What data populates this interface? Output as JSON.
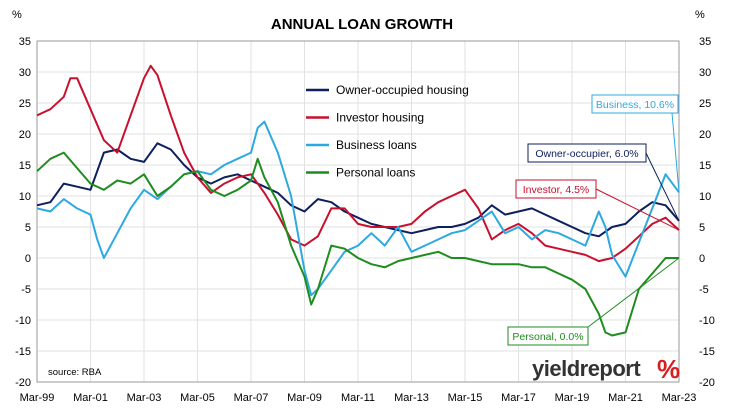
{
  "chart_data": {
    "type": "line",
    "title": "ANNUAL LOAN GROWTH",
    "y_unit_left": "%",
    "y_unit_right": "%",
    "ylim": [
      -20,
      35
    ],
    "yticks": [
      35,
      30,
      25,
      20,
      15,
      10,
      5,
      0,
      -5,
      -10,
      -15,
      -20
    ],
    "xlim": [
      "1999-03",
      "2023-03"
    ],
    "xticks": [
      "Mar-99",
      "Mar-01",
      "Mar-03",
      "Mar-05",
      "Mar-07",
      "Mar-09",
      "Mar-11",
      "Mar-13",
      "Mar-15",
      "Mar-17",
      "Mar-19",
      "Mar-21",
      "Mar-23"
    ],
    "grid": true,
    "legend_position": "top-center",
    "source": "source: RBA",
    "brand": "yieldreport",
    "brand_symbol": "%",
    "series": [
      {
        "name": "Owner-occupied housing",
        "color": "#0d1f5c",
        "points": [
          [
            "1999-03",
            8.5
          ],
          [
            "1999-09",
            9.0
          ],
          [
            "2000-03",
            12.0
          ],
          [
            "2000-09",
            11.5
          ],
          [
            "2001-03",
            11.0
          ],
          [
            "2001-06",
            14.0
          ],
          [
            "2001-09",
            17.0
          ],
          [
            "2002-03",
            17.5
          ],
          [
            "2002-09",
            16.0
          ],
          [
            "2003-03",
            15.5
          ],
          [
            "2003-09",
            18.5
          ],
          [
            "2004-03",
            17.5
          ],
          [
            "2004-09",
            15.0
          ],
          [
            "2005-03",
            13.0
          ],
          [
            "2005-09",
            12.0
          ],
          [
            "2006-03",
            13.0
          ],
          [
            "2006-09",
            13.5
          ],
          [
            "2007-03",
            12.5
          ],
          [
            "2007-09",
            11.5
          ],
          [
            "2008-03",
            10.5
          ],
          [
            "2008-09",
            8.5
          ],
          [
            "2009-03",
            7.5
          ],
          [
            "2009-09",
            9.5
          ],
          [
            "2010-03",
            9.0
          ],
          [
            "2010-09",
            7.5
          ],
          [
            "2011-03",
            6.5
          ],
          [
            "2011-09",
            5.5
          ],
          [
            "2012-03",
            5.0
          ],
          [
            "2012-09",
            4.5
          ],
          [
            "2013-03",
            4.0
          ],
          [
            "2013-09",
            4.5
          ],
          [
            "2014-03",
            5.0
          ],
          [
            "2014-09",
            5.0
          ],
          [
            "2015-03",
            5.5
          ],
          [
            "2015-09",
            6.5
          ],
          [
            "2016-03",
            8.5
          ],
          [
            "2016-09",
            7.0
          ],
          [
            "2017-03",
            7.5
          ],
          [
            "2017-09",
            8.0
          ],
          [
            "2018-03",
            7.0
          ],
          [
            "2018-09",
            6.0
          ],
          [
            "2019-03",
            5.0
          ],
          [
            "2019-09",
            4.0
          ],
          [
            "2020-03",
            3.5
          ],
          [
            "2020-09",
            5.0
          ],
          [
            "2021-03",
            5.5
          ],
          [
            "2021-09",
            7.5
          ],
          [
            "2022-03",
            9.0
          ],
          [
            "2022-09",
            8.5
          ],
          [
            "2023-03",
            6.0
          ]
        ]
      },
      {
        "name": "Investor housing",
        "color": "#c8102e",
        "points": [
          [
            "1999-03",
            23.0
          ],
          [
            "1999-09",
            24.0
          ],
          [
            "2000-03",
            26.0
          ],
          [
            "2000-06",
            29.0
          ],
          [
            "2000-09",
            29.0
          ],
          [
            "2001-03",
            24.0
          ],
          [
            "2001-09",
            19.0
          ],
          [
            "2002-03",
            17.0
          ],
          [
            "2002-09",
            23.0
          ],
          [
            "2003-03",
            29.0
          ],
          [
            "2003-06",
            31.0
          ],
          [
            "2003-09",
            29.5
          ],
          [
            "2004-03",
            23.0
          ],
          [
            "2004-09",
            17.0
          ],
          [
            "2005-03",
            13.0
          ],
          [
            "2005-09",
            10.5
          ],
          [
            "2006-03",
            12.0
          ],
          [
            "2006-09",
            13.0
          ],
          [
            "2007-03",
            13.5
          ],
          [
            "2007-09",
            10.5
          ],
          [
            "2008-03",
            7.0
          ],
          [
            "2008-09",
            3.0
          ],
          [
            "2009-03",
            2.0
          ],
          [
            "2009-09",
            3.5
          ],
          [
            "2010-03",
            8.0
          ],
          [
            "2010-09",
            8.0
          ],
          [
            "2011-03",
            5.5
          ],
          [
            "2011-09",
            5.0
          ],
          [
            "2012-03",
            5.0
          ],
          [
            "2012-09",
            5.0
          ],
          [
            "2013-03",
            5.5
          ],
          [
            "2013-09",
            7.5
          ],
          [
            "2014-03",
            9.0
          ],
          [
            "2014-09",
            10.0
          ],
          [
            "2015-03",
            11.0
          ],
          [
            "2015-09",
            8.0
          ],
          [
            "2016-03",
            3.0
          ],
          [
            "2016-09",
            4.5
          ],
          [
            "2017-03",
            5.5
          ],
          [
            "2017-09",
            4.0
          ],
          [
            "2018-03",
            2.0
          ],
          [
            "2018-09",
            1.5
          ],
          [
            "2019-03",
            1.0
          ],
          [
            "2019-09",
            0.5
          ],
          [
            "2020-03",
            -0.5
          ],
          [
            "2020-09",
            0.0
          ],
          [
            "2021-03",
            1.5
          ],
          [
            "2021-09",
            3.5
          ],
          [
            "2022-03",
            5.5
          ],
          [
            "2022-09",
            6.5
          ],
          [
            "2023-03",
            4.5
          ]
        ]
      },
      {
        "name": "Business loans",
        "color": "#2da9e1",
        "points": [
          [
            "1999-03",
            8.0
          ],
          [
            "1999-09",
            7.5
          ],
          [
            "2000-03",
            9.5
          ],
          [
            "2000-09",
            8.0
          ],
          [
            "2001-03",
            7.0
          ],
          [
            "2001-06",
            3.0
          ],
          [
            "2001-09",
            0.0
          ],
          [
            "2002-03",
            4.0
          ],
          [
            "2002-09",
            8.0
          ],
          [
            "2003-03",
            11.0
          ],
          [
            "2003-09",
            9.5
          ],
          [
            "2004-03",
            11.5
          ],
          [
            "2004-09",
            13.5
          ],
          [
            "2005-03",
            14.0
          ],
          [
            "2005-09",
            13.5
          ],
          [
            "2006-03",
            15.0
          ],
          [
            "2006-09",
            16.0
          ],
          [
            "2007-03",
            17.0
          ],
          [
            "2007-06",
            21.0
          ],
          [
            "2007-09",
            22.0
          ],
          [
            "2008-03",
            17.0
          ],
          [
            "2008-09",
            10.0
          ],
          [
            "2009-03",
            -2.0
          ],
          [
            "2009-06",
            -6.0
          ],
          [
            "2009-09",
            -5.0
          ],
          [
            "2010-03",
            -2.0
          ],
          [
            "2010-09",
            1.0
          ],
          [
            "2011-03",
            2.0
          ],
          [
            "2011-09",
            4.0
          ],
          [
            "2012-03",
            2.0
          ],
          [
            "2012-09",
            5.0
          ],
          [
            "2013-03",
            1.0
          ],
          [
            "2013-09",
            2.0
          ],
          [
            "2014-03",
            3.0
          ],
          [
            "2014-09",
            4.0
          ],
          [
            "2015-03",
            4.5
          ],
          [
            "2015-09",
            6.0
          ],
          [
            "2016-03",
            7.5
          ],
          [
            "2016-09",
            4.0
          ],
          [
            "2017-03",
            5.0
          ],
          [
            "2017-09",
            3.0
          ],
          [
            "2018-03",
            4.5
          ],
          [
            "2018-09",
            4.0
          ],
          [
            "2019-03",
            3.0
          ],
          [
            "2019-09",
            2.0
          ],
          [
            "2020-03",
            7.5
          ],
          [
            "2020-06",
            5.0
          ],
          [
            "2020-09",
            0.5
          ],
          [
            "2021-03",
            -3.0
          ],
          [
            "2021-09",
            2.5
          ],
          [
            "2022-03",
            8.0
          ],
          [
            "2022-09",
            13.5
          ],
          [
            "2023-03",
            10.6
          ]
        ]
      },
      {
        "name": "Personal loans",
        "color": "#1f8c1f",
        "points": [
          [
            "1999-03",
            14.0
          ],
          [
            "1999-09",
            16.0
          ],
          [
            "2000-03",
            17.0
          ],
          [
            "2000-09",
            14.5
          ],
          [
            "2001-03",
            12.0
          ],
          [
            "2001-09",
            11.0
          ],
          [
            "2002-03",
            12.5
          ],
          [
            "2002-09",
            12.0
          ],
          [
            "2003-03",
            13.5
          ],
          [
            "2003-09",
            10.0
          ],
          [
            "2004-03",
            11.5
          ],
          [
            "2004-09",
            13.5
          ],
          [
            "2005-03",
            14.0
          ],
          [
            "2005-09",
            11.0
          ],
          [
            "2006-03",
            10.0
          ],
          [
            "2006-09",
            11.0
          ],
          [
            "2007-03",
            12.5
          ],
          [
            "2007-06",
            16.0
          ],
          [
            "2007-09",
            13.0
          ],
          [
            "2008-03",
            9.0
          ],
          [
            "2008-09",
            2.0
          ],
          [
            "2009-03",
            -3.0
          ],
          [
            "2009-06",
            -7.5
          ],
          [
            "2009-09",
            -5.0
          ],
          [
            "2010-03",
            2.0
          ],
          [
            "2010-09",
            1.5
          ],
          [
            "2011-03",
            0.0
          ],
          [
            "2011-09",
            -1.0
          ],
          [
            "2012-03",
            -1.5
          ],
          [
            "2012-09",
            -0.5
          ],
          [
            "2013-03",
            0.0
          ],
          [
            "2013-09",
            0.5
          ],
          [
            "2014-03",
            1.0
          ],
          [
            "2014-09",
            0.0
          ],
          [
            "2015-03",
            0.0
          ],
          [
            "2015-09",
            -0.5
          ],
          [
            "2016-03",
            -1.0
          ],
          [
            "2016-09",
            -1.0
          ],
          [
            "2017-03",
            -1.0
          ],
          [
            "2017-09",
            -1.5
          ],
          [
            "2018-03",
            -1.5
          ],
          [
            "2018-09",
            -2.5
          ],
          [
            "2019-03",
            -3.5
          ],
          [
            "2019-09",
            -5.0
          ],
          [
            "2020-03",
            -9.0
          ],
          [
            "2020-06",
            -12.0
          ],
          [
            "2020-09",
            -12.5
          ],
          [
            "2021-03",
            -12.0
          ],
          [
            "2021-09",
            -5.0
          ],
          [
            "2022-03",
            -2.5
          ],
          [
            "2022-09",
            0.0
          ],
          [
            "2023-03",
            0.0
          ]
        ]
      }
    ],
    "annotations": [
      {
        "text": "Business, 10.6%",
        "color": "#2da9e1",
        "series": "Business loans",
        "value": 10.6
      },
      {
        "text": "Owner-occupier, 6.0%",
        "color": "#0d1f5c",
        "series": "Owner-occupied housing",
        "value": 6.0
      },
      {
        "text": "Investor, 4.5%",
        "color": "#c8102e",
        "series": "Investor housing",
        "value": 4.5
      },
      {
        "text": "Personal, 0.0%",
        "color": "#1f8c1f",
        "series": "Personal loans",
        "value": 0.0
      }
    ]
  }
}
